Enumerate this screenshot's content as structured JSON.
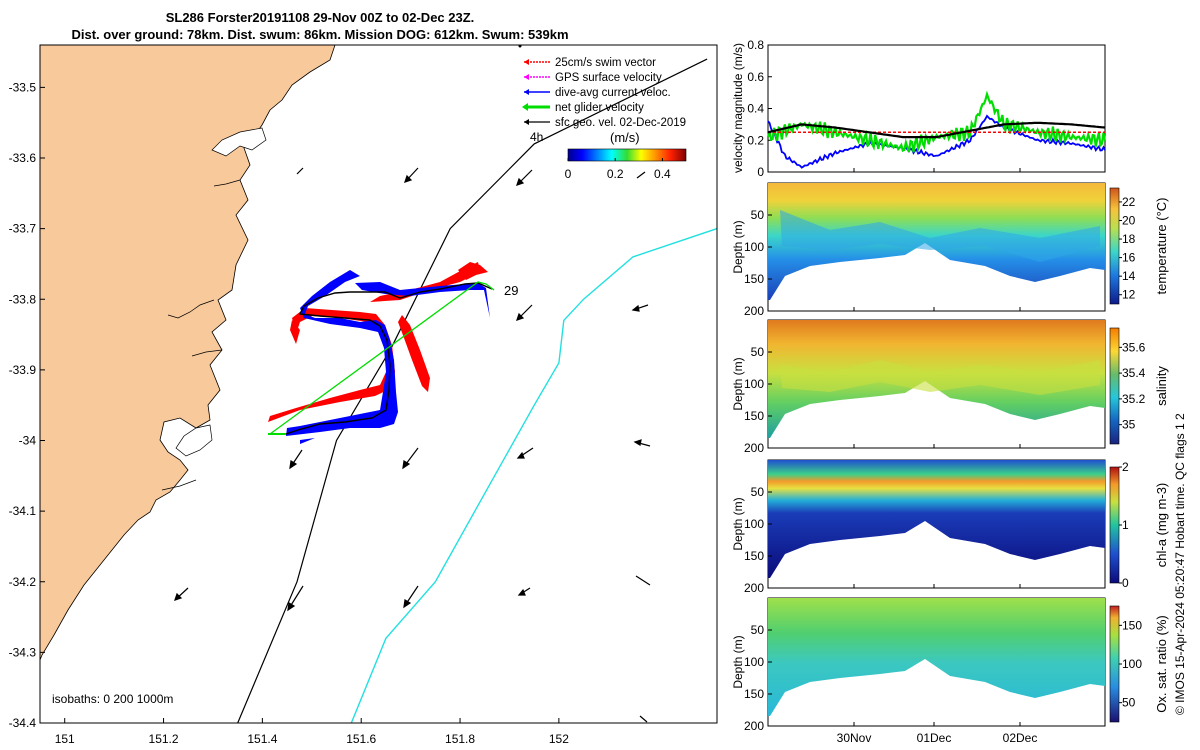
{
  "title": {
    "line1": "SL286 Forster20191108 29-Nov 00Z to 02-Dec 23Z.",
    "line2": "Dist. over ground: 78km. Dist. swum: 86km. Mission DOG: 612km. Swum: 539km"
  },
  "colors": {
    "land": "#f8c99b",
    "coast": "#000000",
    "swim_vector": "#ff0000",
    "gps": "#ff00ff",
    "current": "#0000ff",
    "net": "#00dd00",
    "sfc_geo": "#000000",
    "isobath_200": "#000000",
    "isobath_1000": "#22e0e0"
  },
  "map": {
    "legend": [
      "25cm/s swim vector",
      "GPS surface velocity",
      "dive-avg current veloc.",
      "net glider velocity",
      "sfc geo. vel. 02-Dec-2019"
    ],
    "colorbar_title": "(m/s)",
    "colorbar_ticks": [
      "0",
      "0.2",
      "0.4"
    ],
    "colorbar_range": [
      0,
      0.5
    ],
    "start_label": "4h",
    "day_label": "29",
    "isobaths_label": "isobaths: 0   200  1000m",
    "xlim": [
      150.95,
      152.32
    ],
    "ylim": [
      -34.4,
      -33.44
    ],
    "xticks": [
      "151",
      "151.2",
      "151.4",
      "151.6",
      "151.8",
      "152"
    ],
    "yticks": [
      "-33.5",
      "-33.6",
      "-33.7",
      "-33.8",
      "-33.9",
      "-34",
      "-34.1",
      "-34.2",
      "-34.3",
      "-34.4"
    ],
    "isobath_200_line": [
      [
        151.35,
        -34.4
      ],
      [
        151.47,
        -34.2
      ],
      [
        151.55,
        -34.0
      ],
      [
        151.66,
        -33.87
      ],
      [
        151.78,
        -33.7
      ],
      [
        151.95,
        -33.58
      ],
      [
        152.3,
        -33.46
      ]
    ],
    "isobath_1000_line": [
      [
        151.58,
        -34.4
      ],
      [
        151.65,
        -34.28
      ],
      [
        151.75,
        -34.2
      ],
      [
        151.87,
        -34.05
      ],
      [
        151.95,
        -33.95
      ],
      [
        152.0,
        -33.89
      ],
      [
        152.01,
        -33.83
      ],
      [
        152.05,
        -33.8
      ],
      [
        152.15,
        -33.74
      ],
      [
        152.32,
        -33.7
      ]
    ]
  },
  "profiles": {
    "xticks": [
      "30Nov",
      "01Dec",
      "02Dec"
    ],
    "velocity": {
      "ylabel": "velocity magnitude (m/s)",
      "yticks": [
        "0",
        "0.2",
        "0.4",
        "0.6",
        "0.8"
      ],
      "ylim": [
        0,
        0.8
      ]
    },
    "depth_ylabel": "Depth (m)",
    "depth_ticks": [
      "50",
      "100",
      "150",
      "200"
    ],
    "panels": [
      {
        "id": "temperature",
        "cbar_label": "temperature (°C)",
        "ticks": [
          "12",
          "14",
          "16",
          "18",
          "20",
          "22"
        ],
        "range": [
          11,
          23.5
        ]
      },
      {
        "id": "salinity",
        "cbar_label": "salinity",
        "ticks": [
          "35",
          "35.2",
          "35.4",
          "35.6"
        ],
        "range": [
          34.85,
          35.75
        ]
      },
      {
        "id": "chla",
        "cbar_label": "chl-a (mg m-3)",
        "ticks": [
          "0",
          "1",
          "2"
        ],
        "range": [
          0,
          2
        ]
      },
      {
        "id": "oxygen",
        "cbar_label": "Ox. sat. ratio (%)",
        "ticks": [
          "50",
          "100",
          "150"
        ],
        "range": [
          25,
          175
        ]
      }
    ],
    "qc_note": "© IMOS 15-Apr-2024 05:20:47 Hobart time. QC flags 1  2"
  },
  "chart_data": [
    {
      "type": "line",
      "title": "SL286 Forster20191108 29-Nov 00Z to 02-Dec 23Z.",
      "subtitle": "Dist. over ground: 78km. Dist. swum: 86km. Mission DOG: 612km. Swum: 539km",
      "xlim": [
        150.95,
        152.32
      ],
      "ylim": [
        -34.4,
        -33.44
      ],
      "series": [
        {
          "name": "net glider velocity",
          "points": [
            [
              151.73,
              -33.78
            ],
            [
              151.64,
              -33.78
            ],
            [
              151.55,
              -33.79
            ],
            [
              151.47,
              -33.8
            ],
            [
              151.43,
              -33.78
            ],
            [
              151.38,
              -33.79
            ],
            [
              151.4,
              -33.81
            ],
            [
              151.48,
              -33.82
            ],
            [
              151.53,
              -33.84
            ],
            [
              151.53,
              -33.88
            ],
            [
              151.52,
              -33.93
            ],
            [
              151.48,
              -33.96
            ],
            [
              151.4,
              -33.98
            ],
            [
              151.34,
              -33.98
            ]
          ]
        }
      ],
      "current_vectors": [
        {
          "lon": 151.58,
          "lat": -33.81,
          "u": 0.18,
          "v": -0.14
        },
        {
          "lon": 151.53,
          "lat": -33.92,
          "u": 0.12,
          "v": -0.08
        }
      ]
    },
    {
      "type": "line",
      "ylabel": "velocity magnitude (m/s)",
      "xticks": [
        "30Nov",
        "01Dec",
        "02Dec"
      ],
      "ylim": [
        0,
        0.8
      ],
      "series": [
        {
          "name": "net glider velocity",
          "x": [
            0,
            0.1,
            0.2,
            0.3,
            0.4,
            0.5,
            0.6,
            0.65,
            0.7,
            0.75,
            0.8,
            0.9,
            1.0
          ],
          "y": [
            0.22,
            0.3,
            0.25,
            0.2,
            0.15,
            0.22,
            0.25,
            0.48,
            0.3,
            0.28,
            0.25,
            0.22,
            0.2
          ]
        },
        {
          "name": "dive-avg current veloc.",
          "x": [
            0,
            0.05,
            0.1,
            0.2,
            0.3,
            0.4,
            0.5,
            0.6,
            0.65,
            0.7,
            0.8,
            0.9,
            1.0
          ],
          "y": [
            0.32,
            0.1,
            0.03,
            0.12,
            0.18,
            0.15,
            0.1,
            0.2,
            0.35,
            0.28,
            0.2,
            0.18,
            0.14
          ]
        },
        {
          "name": "sfc geo. vel. 02-Dec-2019",
          "x": [
            0,
            0.1,
            0.2,
            0.3,
            0.4,
            0.5,
            0.6,
            0.7,
            0.8,
            0.9,
            1.0
          ],
          "y": [
            0.25,
            0.3,
            0.28,
            0.25,
            0.22,
            0.22,
            0.26,
            0.3,
            0.31,
            0.3,
            0.28
          ]
        },
        {
          "name": "25cm/s swim vector",
          "x": [
            0,
            1
          ],
          "y": [
            0.25,
            0.25
          ]
        }
      ]
    },
    {
      "type": "heatmap",
      "ylabel": "Depth (m)",
      "colorbar_label": "temperature (°C)",
      "ylim": [
        200,
        0
      ]
    },
    {
      "type": "heatmap",
      "ylabel": "Depth (m)",
      "colorbar_label": "salinity",
      "ylim": [
        200,
        0
      ]
    },
    {
      "type": "heatmap",
      "ylabel": "Depth (m)",
      "colorbar_label": "chl-a (mg m-3)",
      "ylim": [
        200,
        0
      ]
    },
    {
      "type": "heatmap",
      "ylabel": "Depth (m)",
      "colorbar_label": "Ox. sat. ratio (%)",
      "ylim": [
        200,
        0
      ]
    }
  ]
}
